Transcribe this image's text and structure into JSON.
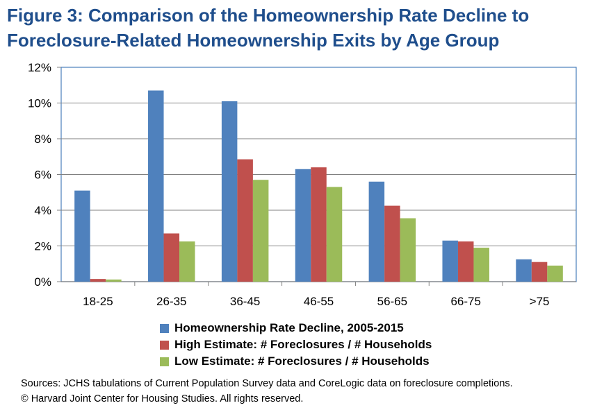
{
  "title_line1": "Figure 3: Comparison of the Homeownership Rate Decline to",
  "title_line2": "Foreclosure-Related Homeownership Exits by Age Group",
  "colors": {
    "title": "#1F4E8C",
    "series": [
      "#4F81BD",
      "#C0504D",
      "#9BBB59"
    ],
    "grid": "#808080",
    "border": "#4A7EBB"
  },
  "chart_data": {
    "type": "bar",
    "title": "Figure 3: Comparison of the Homeownership Rate Decline to Foreclosure-Related Homeownership Exits by Age Group",
    "xlabel": "",
    "ylabel": "",
    "ylim": [
      0,
      12
    ],
    "yticks": [
      0,
      2,
      4,
      6,
      8,
      10,
      12
    ],
    "ytick_labels": [
      "0%",
      "2%",
      "4%",
      "6%",
      "8%",
      "10%",
      "12%"
    ],
    "grid": true,
    "legend_position": "bottom",
    "categories": [
      "18-25",
      "26-35",
      "36-45",
      "46-55",
      "56-65",
      "66-75",
      ">75"
    ],
    "series": [
      {
        "name": "Homeownership Rate Decline, 2005-2015",
        "values": [
          5.1,
          10.7,
          10.1,
          6.3,
          5.6,
          2.3,
          1.25
        ]
      },
      {
        "name": "High Estimate: # Foreclosures / # Households",
        "values": [
          0.15,
          2.7,
          6.85,
          6.4,
          4.25,
          2.25,
          1.1
        ]
      },
      {
        "name": "Low Estimate: # Foreclosures / # Households",
        "values": [
          0.12,
          2.25,
          5.7,
          5.3,
          3.55,
          1.9,
          0.9
        ]
      }
    ]
  },
  "sources_line1": "Sources: JCHS tabulations of Current Population Survey data and CoreLogic data on foreclosure completions.",
  "sources_line2": "© Harvard Joint Center for Housing Studies. All rights reserved."
}
